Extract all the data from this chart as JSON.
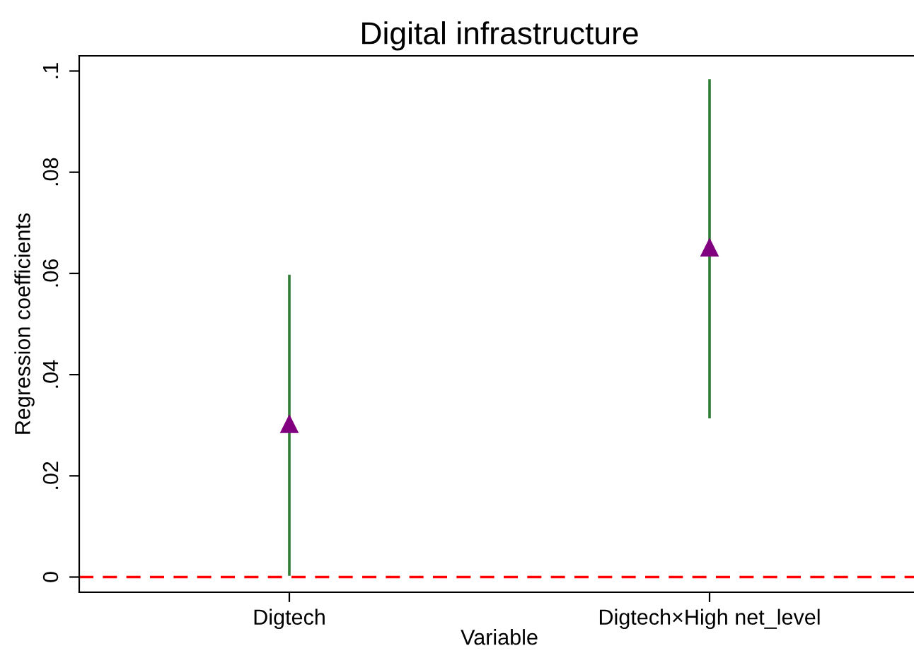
{
  "chart_data": {
    "type": "scatter",
    "title": "Digital infrastructure",
    "xlabel": "Variable",
    "ylabel": "Regression coefficients",
    "categories": [
      "Digtech",
      "Digtech×High net_level"
    ],
    "series": [
      {
        "color": "#800080",
        "values": [
          0.0302,
          0.0651
        ],
        "errors": [
          [
            0.0005,
            0.0595
          ],
          [
            0.0316,
            0.0981
          ]
        ]
      }
    ],
    "marker": "triangle",
    "ylim": [
      -0.003,
      0.103
    ],
    "yticks": [
      0,
      {
        "value": 0.02,
        "label": ".02"
      },
      {
        "value": 0.04,
        "label": ".04"
      },
      {
        "value": 0.06,
        "label": ".06"
      },
      {
        "value": 0.08,
        "label": ".08"
      },
      {
        "value": 0.1,
        "label": ".1"
      }
    ],
    "ref_lines": [
      {
        "axis": "y",
        "value": 0,
        "color": "#ff0000",
        "line_style": "dashed"
      }
    ],
    "grid": false
  }
}
